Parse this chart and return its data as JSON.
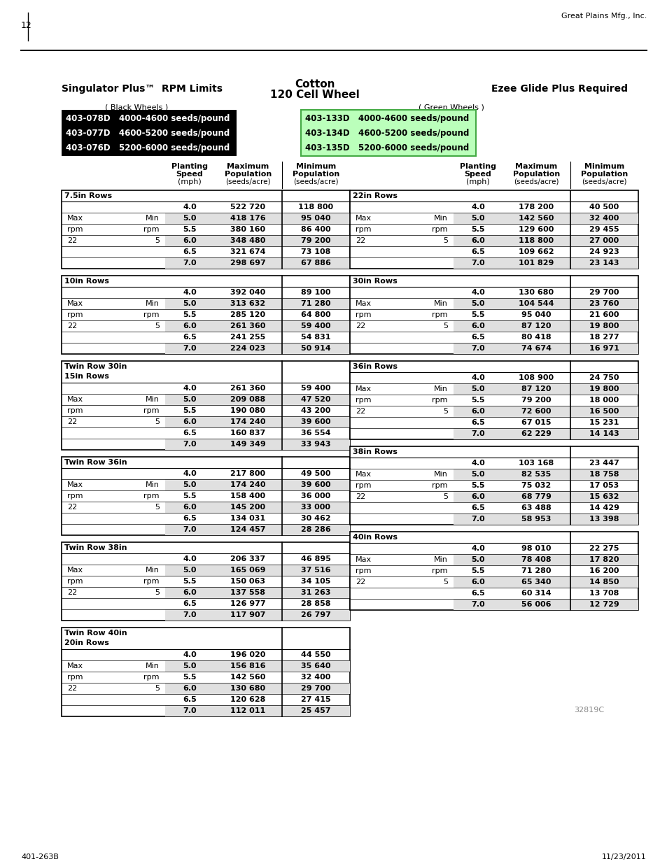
{
  "page_number": "12",
  "header_right": "Great Plains Mfg., Inc.",
  "footer_left": "401-263B",
  "footer_right": "11/23/2011",
  "watermark": "32819C",
  "title_left": "Singulator Plus™  RPM Limits",
  "title_center_line1": "Cotton",
  "title_center_line2": "120 Cell Wheel",
  "title_right": "Ezee Glide Plus Required",
  "black_wheels_label": "( Black Wheels )",
  "green_wheels_label": "( Green Wheels )",
  "black_boxes": [
    [
      "403-078D",
      "4000-4600 seeds/pound"
    ],
    [
      "403-077D",
      "4600-5200 seeds/pound"
    ],
    [
      "403-076D",
      "5200-6000 seeds/pound"
    ]
  ],
  "green_boxes": [
    [
      "403-133D",
      "4000-4600 seeds/pound"
    ],
    [
      "403-134D",
      "4600-5200 seeds/pound"
    ],
    [
      "403-135D",
      "5200-6000 seeds/pound"
    ]
  ],
  "left_tables": [
    {
      "title": "7.5in Rows",
      "subtitle": "",
      "rows": [
        [
          "4.0",
          "522 720",
          "118 800"
        ],
        [
          "5.0",
          "418 176",
          "95 040"
        ],
        [
          "5.5",
          "380 160",
          "86 400"
        ],
        [
          "6.0",
          "348 480",
          "79 200"
        ],
        [
          "6.5",
          "321 674",
          "73 108"
        ],
        [
          "7.0",
          "298 697",
          "67 886"
        ]
      ]
    },
    {
      "title": "10in Rows",
      "subtitle": "",
      "rows": [
        [
          "4.0",
          "392 040",
          "89 100"
        ],
        [
          "5.0",
          "313 632",
          "71 280"
        ],
        [
          "5.5",
          "285 120",
          "64 800"
        ],
        [
          "6.0",
          "261 360",
          "59 400"
        ],
        [
          "6.5",
          "241 255",
          "54 831"
        ],
        [
          "7.0",
          "224 023",
          "50 914"
        ]
      ]
    },
    {
      "title": "Twin Row 30in",
      "subtitle": "15in Rows",
      "rows": [
        [
          "4.0",
          "261 360",
          "59 400"
        ],
        [
          "5.0",
          "209 088",
          "47 520"
        ],
        [
          "5.5",
          "190 080",
          "43 200"
        ],
        [
          "6.0",
          "174 240",
          "39 600"
        ],
        [
          "6.5",
          "160 837",
          "36 554"
        ],
        [
          "7.0",
          "149 349",
          "33 943"
        ]
      ]
    },
    {
      "title": "Twin Row 36in",
      "subtitle": "",
      "rows": [
        [
          "4.0",
          "217 800",
          "49 500"
        ],
        [
          "5.0",
          "174 240",
          "39 600"
        ],
        [
          "5.5",
          "158 400",
          "36 000"
        ],
        [
          "6.0",
          "145 200",
          "33 000"
        ],
        [
          "6.5",
          "134 031",
          "30 462"
        ],
        [
          "7.0",
          "124 457",
          "28 286"
        ]
      ]
    },
    {
      "title": "Twin Row 38in",
      "subtitle": "",
      "rows": [
        [
          "4.0",
          "206 337",
          "46 895"
        ],
        [
          "5.0",
          "165 069",
          "37 516"
        ],
        [
          "5.5",
          "150 063",
          "34 105"
        ],
        [
          "6.0",
          "137 558",
          "31 263"
        ],
        [
          "6.5",
          "126 977",
          "28 858"
        ],
        [
          "7.0",
          "117 907",
          "26 797"
        ]
      ]
    },
    {
      "title": "Twin Row 40in",
      "subtitle": "20in Rows",
      "rows": [
        [
          "4.0",
          "196 020",
          "44 550"
        ],
        [
          "5.0",
          "156 816",
          "35 640"
        ],
        [
          "5.5",
          "142 560",
          "32 400"
        ],
        [
          "6.0",
          "130 680",
          "29 700"
        ],
        [
          "6.5",
          "120 628",
          "27 415"
        ],
        [
          "7.0",
          "112 011",
          "25 457"
        ]
      ]
    }
  ],
  "right_tables": [
    {
      "title": "22in Rows",
      "subtitle": "",
      "rows": [
        [
          "4.0",
          "178 200",
          "40 500"
        ],
        [
          "5.0",
          "142 560",
          "32 400"
        ],
        [
          "5.5",
          "129 600",
          "29 455"
        ],
        [
          "6.0",
          "118 800",
          "27 000"
        ],
        [
          "6.5",
          "109 662",
          "24 923"
        ],
        [
          "7.0",
          "101 829",
          "23 143"
        ]
      ]
    },
    {
      "title": "30in Rows",
      "subtitle": "",
      "rows": [
        [
          "4.0",
          "130 680",
          "29 700"
        ],
        [
          "5.0",
          "104 544",
          "23 760"
        ],
        [
          "5.5",
          "95 040",
          "21 600"
        ],
        [
          "6.0",
          "87 120",
          "19 800"
        ],
        [
          "6.5",
          "80 418",
          "18 277"
        ],
        [
          "7.0",
          "74 674",
          "16 971"
        ]
      ]
    },
    {
      "title": "36in Rows",
      "subtitle": "",
      "rows": [
        [
          "4.0",
          "108 900",
          "24 750"
        ],
        [
          "5.0",
          "87 120",
          "19 800"
        ],
        [
          "5.5",
          "79 200",
          "18 000"
        ],
        [
          "6.0",
          "72 600",
          "16 500"
        ],
        [
          "6.5",
          "67 015",
          "15 231"
        ],
        [
          "7.0",
          "62 229",
          "14 143"
        ]
      ]
    },
    {
      "title": "38in Rows",
      "subtitle": "",
      "rows": [
        [
          "4.0",
          "103 168",
          "23 447"
        ],
        [
          "5.0",
          "82 535",
          "18 758"
        ],
        [
          "5.5",
          "75 032",
          "17 053"
        ],
        [
          "6.0",
          "68 779",
          "15 632"
        ],
        [
          "6.5",
          "63 488",
          "14 429"
        ],
        [
          "7.0",
          "58 953",
          "13 398"
        ]
      ]
    },
    {
      "title": "40in Rows",
      "subtitle": "",
      "rows": [
        [
          "4.0",
          "98 010",
          "22 275"
        ],
        [
          "5.0",
          "78 408",
          "17 820"
        ],
        [
          "5.5",
          "71 280",
          "16 200"
        ],
        [
          "6.0",
          "65 340",
          "14 850"
        ],
        [
          "6.5",
          "60 314",
          "13 708"
        ],
        [
          "7.0",
          "56 006",
          "12 729"
        ]
      ]
    }
  ]
}
